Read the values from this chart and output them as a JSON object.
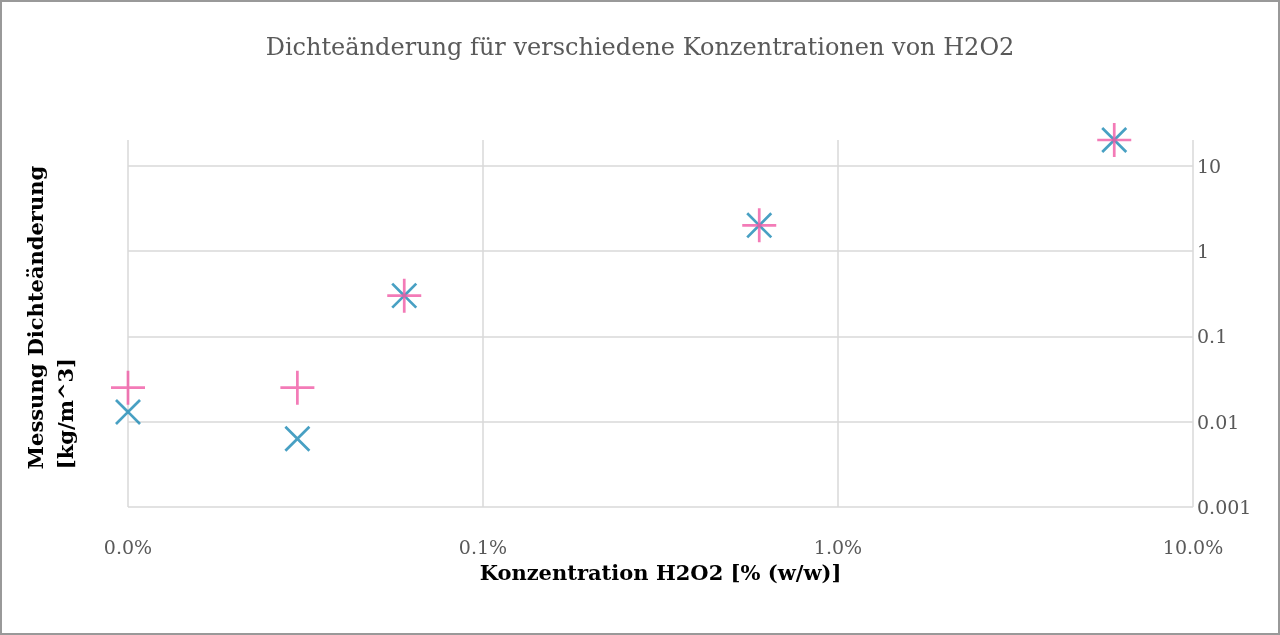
{
  "chart_data": {
    "type": "scatter",
    "title": "Dichteänderung für verschiedene Konzentrationen von H2O2",
    "xlabel": "Konzentration H2O2 [% (w/w)]",
    "ylabel": "Messung Dichteänderung\n[kg/m^3]",
    "log": "xy",
    "grid": true,
    "marker": "cross",
    "xlim": [
      0.01,
      10
    ],
    "xticks": [
      {
        "value": 0.01,
        "label": "0.0%"
      },
      {
        "value": 0.1,
        "label": "0.1%"
      },
      {
        "value": 1,
        "label": "1.0%"
      },
      {
        "value": 10,
        "label": "10.0%"
      }
    ],
    "ylim": [
      0.001,
      20
    ],
    "yticks": [
      0.001,
      0.01,
      0.1,
      1,
      10
    ],
    "x": [
      0.01,
      0.03,
      0.06,
      0.6,
      6
    ],
    "series": [
      {
        "color": "#f05aa5",
        "values": [
          0.025,
          0.025,
          0.3,
          2,
          20
        ]
      },
      {
        "color": "#1a88b4",
        "values": [
          0.013,
          0.0063,
          0.3,
          2,
          20
        ]
      }
    ]
  }
}
